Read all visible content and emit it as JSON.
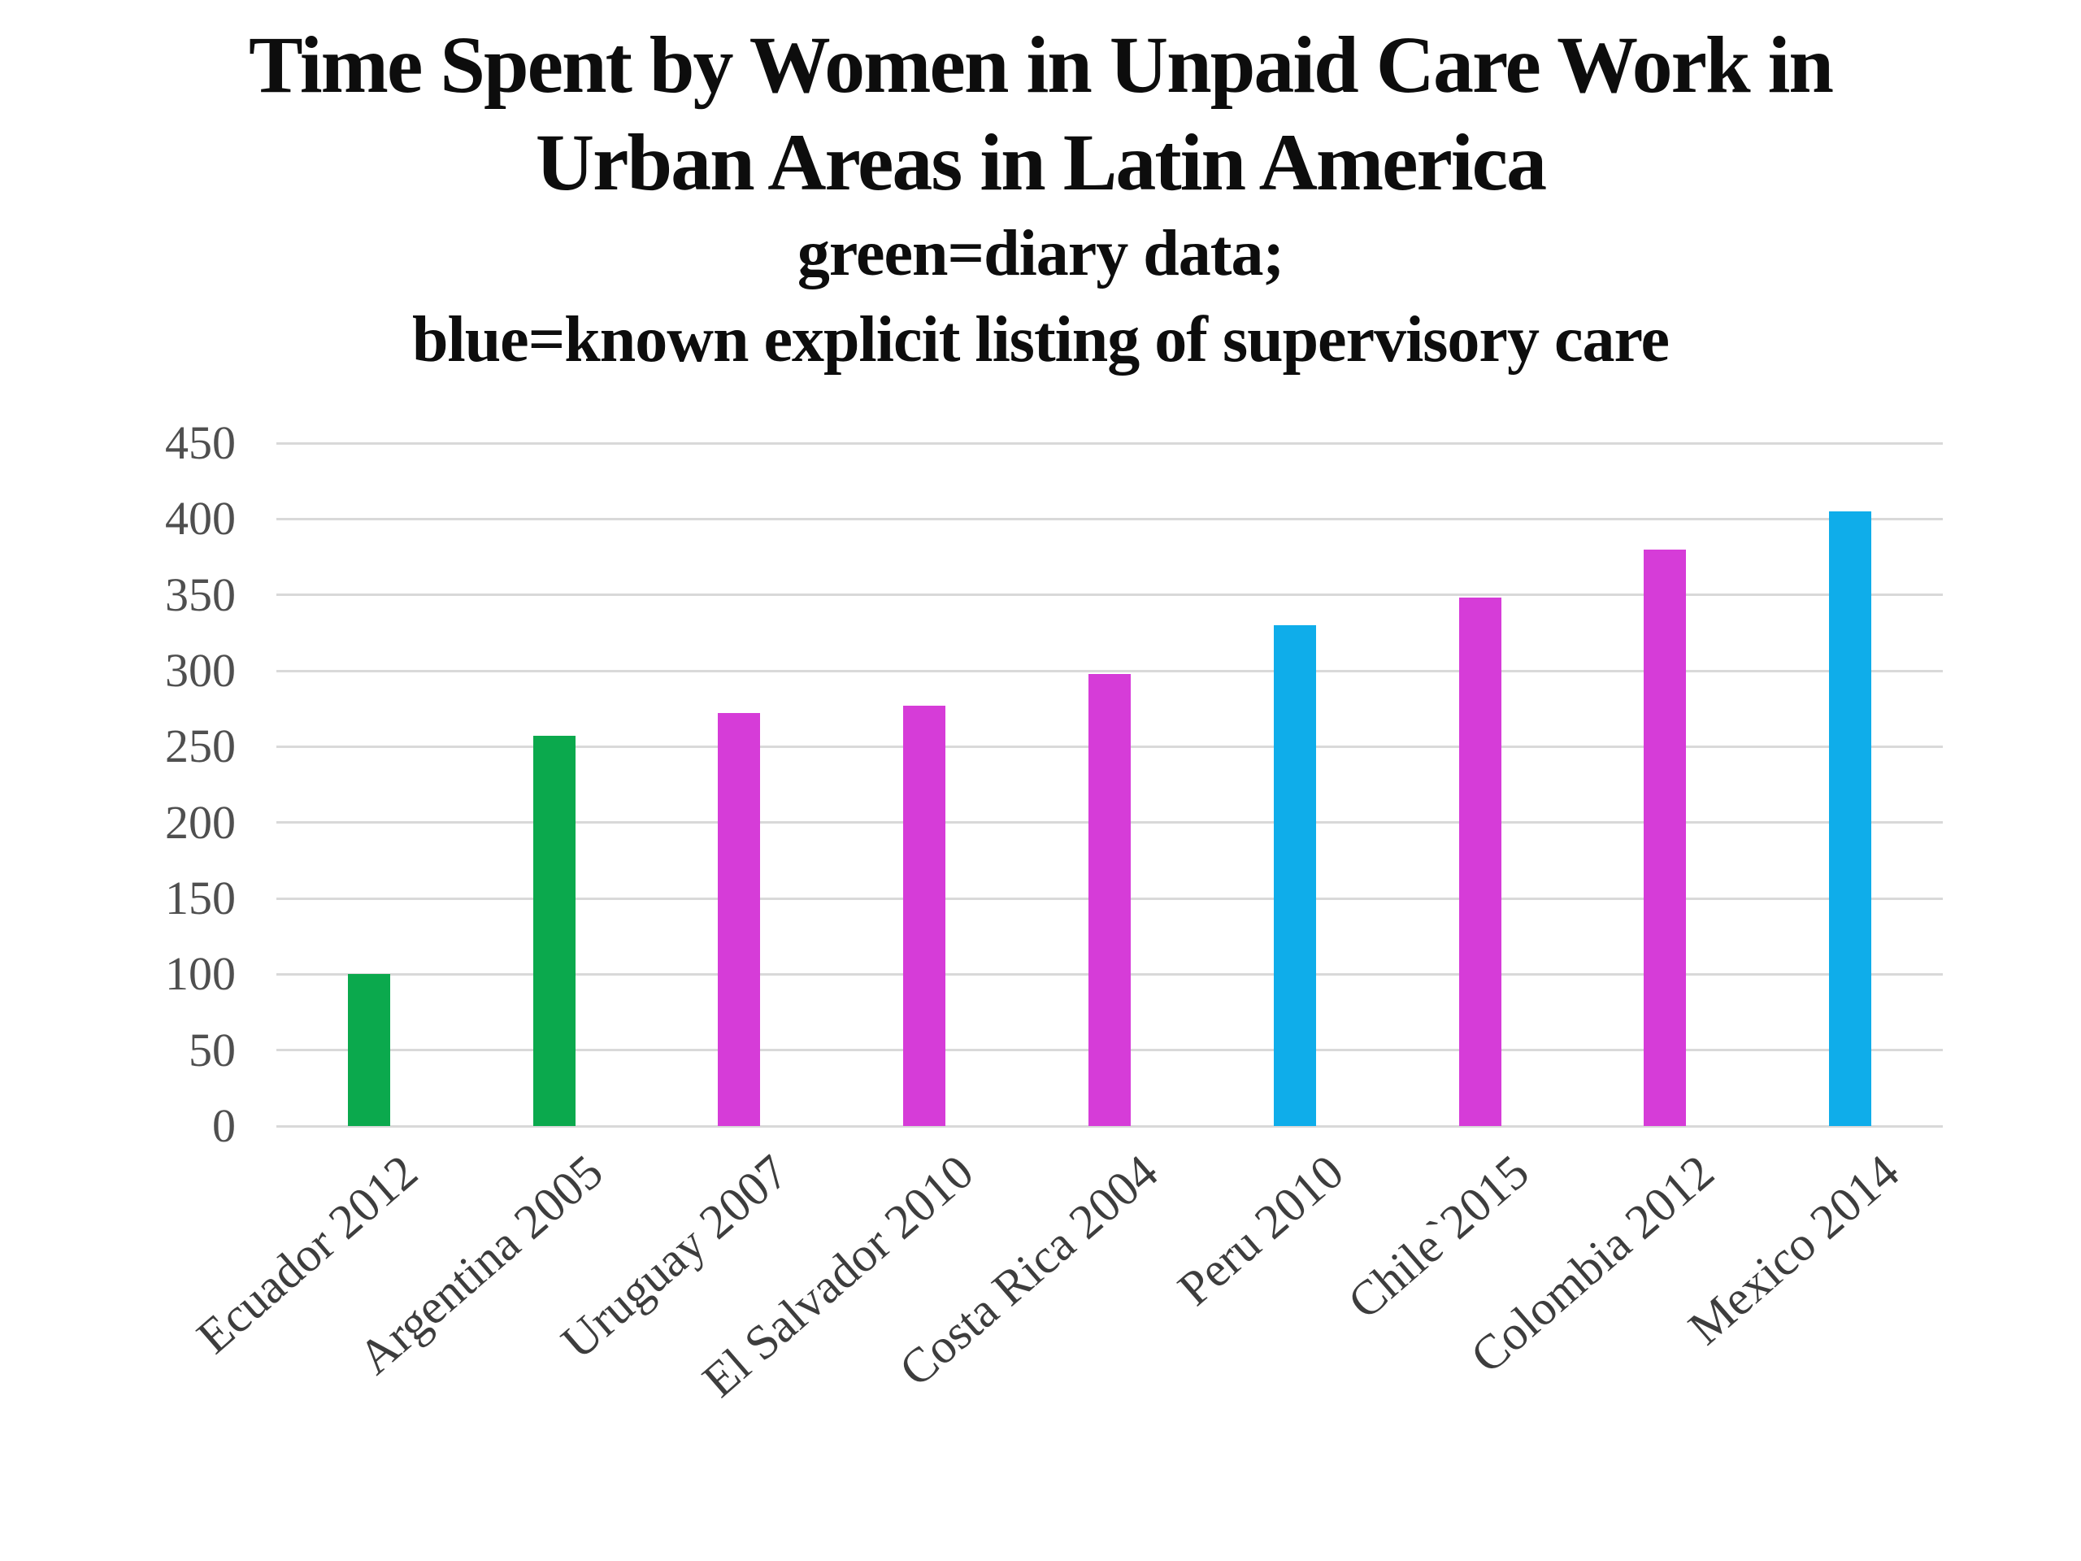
{
  "page": {
    "background": "#ffffff"
  },
  "title": {
    "line1": "Time Spent by Women in Unpaid Care Work in",
    "line2": "Urban Areas in Latin America"
  },
  "subtitle": {
    "line1": "green=diary data;",
    "line2": "blue=known explicit listing of supervisory care"
  },
  "chart_data": {
    "type": "bar",
    "title": "Time Spent by Women in Unpaid Care Work in Urban Areas in Latin America",
    "subtitle": "green=diary data; blue=known explicit listing of supervisory care",
    "categories": [
      "Ecuador 2012",
      "Argentina 2005",
      "Uruguay 2007",
      "El Salvador 2010",
      "Costa Rica 2004",
      "Peru 2010",
      "Chile`2015",
      "Colombia 2012",
      "Mexico 2014"
    ],
    "values": [
      100,
      257,
      272,
      277,
      298,
      330,
      348,
      380,
      405
    ],
    "point_color_keys": [
      "green",
      "green",
      "magenta",
      "magenta",
      "magenta",
      "blue",
      "magenta",
      "magenta",
      "blue"
    ],
    "colors": {
      "green": "#0ba94d",
      "magenta": "#d63cd8",
      "blue": "#0fadea"
    },
    "yticks": [
      0,
      50,
      100,
      150,
      200,
      250,
      300,
      350,
      400,
      450
    ],
    "ylim": [
      0,
      450
    ],
    "xlabel": "",
    "ylabel": "",
    "grid": true,
    "legend_position": "none",
    "gridline_color": "#d9d9d9",
    "tick_label_color": "#4f4f4f"
  }
}
